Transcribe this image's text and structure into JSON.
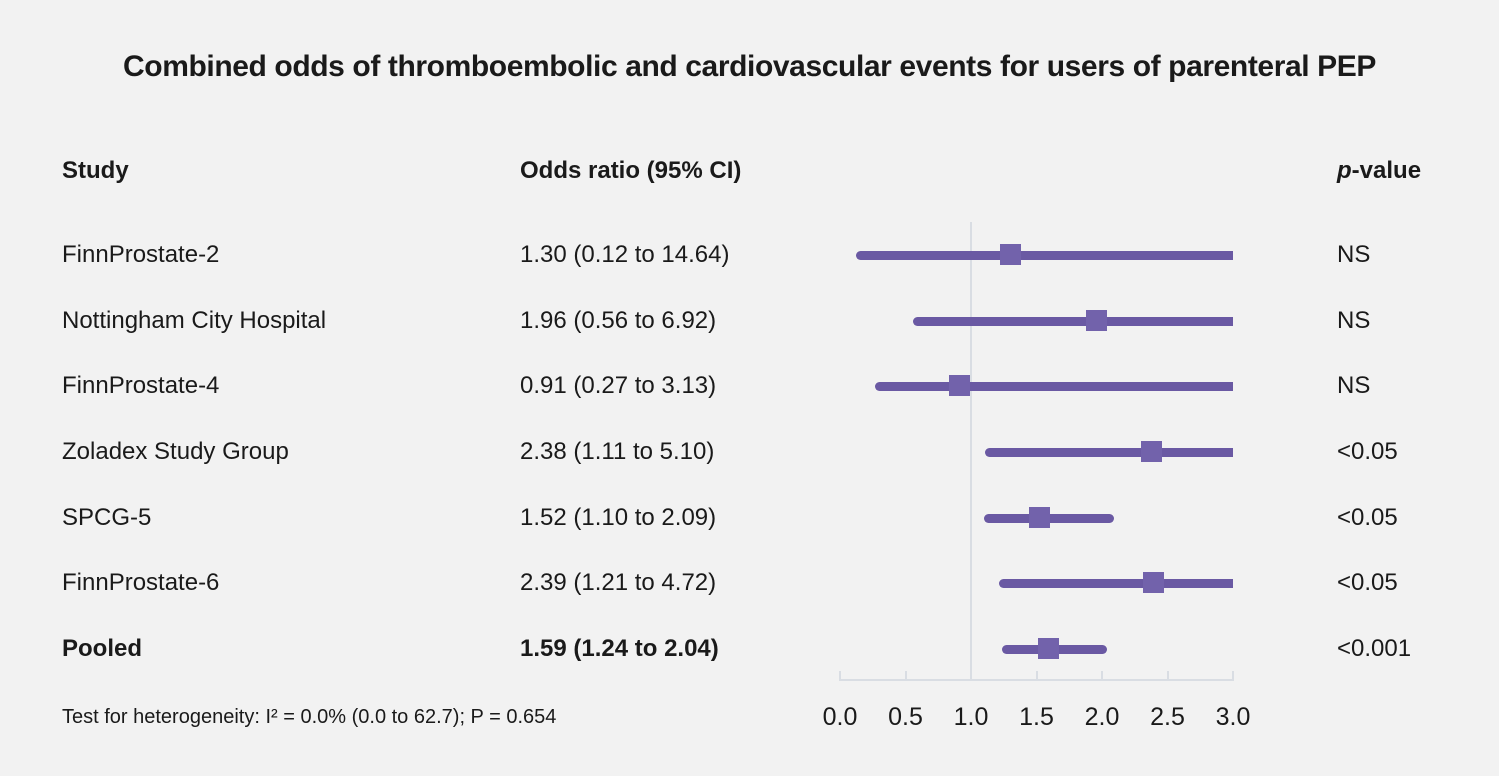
{
  "title": "Combined odds of thromboembolic and cardiovascular events for users of parenteral PEP",
  "columns": {
    "study": "Study",
    "odds_ratio": "Odds ratio (95% CI)",
    "p_value_prefix": "p",
    "p_value_suffix": "-value"
  },
  "footnote": "Test for heterogeneity: I² = 0.0% (0.0 to 62.7); P = 0.654",
  "chart_data": {
    "type": "forest",
    "title": "Combined odds of thromboembolic and cardiovascular events for users of parenteral PEP",
    "xlim": [
      0.0,
      3.0
    ],
    "reference_line": 1.0,
    "axis_ticks": [
      0.0,
      0.5,
      1.0,
      1.5,
      2.0,
      2.5,
      3.0
    ],
    "axis_tick_labels": [
      "0.0",
      "0.5",
      "1.0",
      "1.5",
      "2.0",
      "2.5",
      "3.0"
    ],
    "heterogeneity": "Test for heterogeneity: I² = 0.0% (0.0 to 62.7); P = 0.654",
    "rows": [
      {
        "study": "FinnProstate-2",
        "or_ci_label": "1.30 (0.12 to 14.64)",
        "estimate": 1.3,
        "ci_low": 0.12,
        "ci_high": 14.64,
        "p_value": "NS",
        "bold": false
      },
      {
        "study": "Nottingham City Hospital",
        "or_ci_label": "1.96 (0.56 to 6.92)",
        "estimate": 1.96,
        "ci_low": 0.56,
        "ci_high": 6.92,
        "p_value": "NS",
        "bold": false
      },
      {
        "study": "FinnProstate-4",
        "or_ci_label": "0.91 (0.27 to 3.13)",
        "estimate": 0.91,
        "ci_low": 0.27,
        "ci_high": 3.13,
        "p_value": "NS",
        "bold": false
      },
      {
        "study": "Zoladex Study Group",
        "or_ci_label": "2.38 (1.11 to 5.10)",
        "estimate": 2.38,
        "ci_low": 1.11,
        "ci_high": 5.1,
        "p_value": "<0.05",
        "bold": false
      },
      {
        "study": "SPCG-5",
        "or_ci_label": "1.52 (1.10 to 2.09)",
        "estimate": 1.52,
        "ci_low": 1.1,
        "ci_high": 2.09,
        "p_value": "<0.05",
        "bold": false
      },
      {
        "study": "FinnProstate-6",
        "or_ci_label": "2.39 (1.21 to 4.72)",
        "estimate": 2.39,
        "ci_low": 1.21,
        "ci_high": 4.72,
        "p_value": "<0.05",
        "bold": false
      },
      {
        "study": "Pooled",
        "or_ci_label": "1.59 (1.24 to 2.04)",
        "estimate": 1.59,
        "ci_low": 1.24,
        "ci_high": 2.04,
        "p_value": "<0.001",
        "bold": true
      }
    ],
    "colors": {
      "background": "#f2f2f2",
      "text": "#1a1a1a",
      "ci_line": "#6a59a3",
      "marker": "#7262ab",
      "axis": "#d9dde3"
    }
  }
}
